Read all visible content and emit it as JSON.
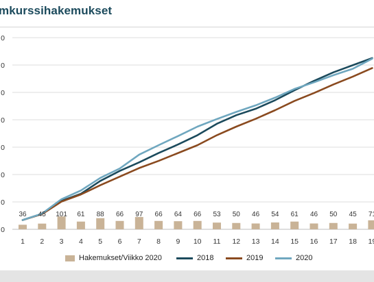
{
  "chart_data": {
    "type": "bar+line",
    "title": "mkurssihakemukset",
    "x": [
      1,
      2,
      3,
      4,
      5,
      6,
      7,
      8,
      9,
      10,
      11,
      12,
      13,
      14,
      15,
      16,
      17,
      18,
      19
    ],
    "y_tick_labels": [
      "0",
      "0",
      "0",
      "0",
      "0",
      "0",
      "0",
      "0"
    ],
    "bars": {
      "name": "Hakemukset/Viikko 2020",
      "color": "#c9b397",
      "values": [
        36,
        45,
        101,
        61,
        88,
        66,
        97,
        66,
        64,
        66,
        53,
        50,
        46,
        54,
        61,
        46,
        50,
        45,
        71
      ],
      "labels": [
        "36",
        "45",
        "101",
        "61",
        "88",
        "66",
        "97",
        "66",
        "64",
        "66",
        "53",
        "50",
        "46",
        "54",
        "61",
        "46",
        "50",
        "45",
        "71"
      ]
    },
    "series": [
      {
        "name": "2018",
        "color": "#1b4a5c",
        "values": [
          36,
          80,
          170,
          220,
          310,
          380,
          440,
          505,
          565,
          630,
          710,
          770,
          815,
          875,
          945,
          1010,
          1070,
          1120,
          1170
        ],
        "end_label": "1"
      },
      {
        "name": "2019",
        "color": "#8a4a1f",
        "values": [
          36,
          78,
          165,
          215,
          280,
          340,
          400,
          450,
          505,
          560,
          630,
          690,
          745,
          805,
          870,
          925,
          985,
          1040,
          1100
        ],
        "end_label": "1"
      },
      {
        "name": "2020",
        "color": "#6fa7bf",
        "values": [
          36,
          81,
          182,
          243,
          331,
          397,
          494,
          560,
          624,
          690,
          743,
          793,
          839,
          893,
          954,
          1000,
          1050,
          1095,
          1166
        ],
        "end_label": "1"
      }
    ],
    "grid": true,
    "legend_position": "bottom"
  }
}
